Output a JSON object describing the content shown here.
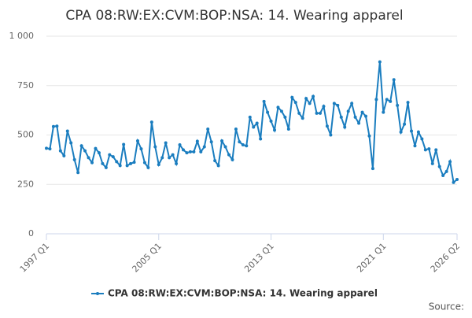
{
  "chart_data": {
    "type": "line",
    "title": "CPA 08:RW:EX:CVM:BOP:NSA: 14. Wearing apparel",
    "source": "Source:",
    "categories": [
      "1997 Q1",
      null,
      null,
      null,
      null,
      null,
      null,
      null,
      null,
      null,
      null,
      null,
      null,
      null,
      null,
      null,
      null,
      null,
      null,
      null,
      null,
      null,
      null,
      null,
      null,
      null,
      null,
      null,
      null,
      null,
      null,
      null,
      "2005 Q1",
      null,
      null,
      null,
      null,
      null,
      null,
      null,
      null,
      null,
      null,
      null,
      null,
      null,
      null,
      null,
      null,
      null,
      null,
      null,
      null,
      null,
      null,
      null,
      null,
      null,
      null,
      null,
      null,
      null,
      null,
      null,
      "2013 Q1",
      null,
      null,
      null,
      null,
      null,
      null,
      null,
      null,
      null,
      null,
      null,
      null,
      null,
      null,
      null,
      null,
      null,
      null,
      null,
      null,
      null,
      null,
      null,
      null,
      null,
      null,
      null,
      null,
      null,
      null,
      null,
      "2021 Q1",
      null,
      null,
      null,
      null,
      null,
      null,
      null,
      null,
      null,
      null,
      null,
      null,
      null,
      null,
      null,
      null,
      null,
      null,
      null,
      null,
      "2026 Q2"
    ],
    "series": [
      {
        "name": "CPA 08:RW:EX:CVM:BOP:NSA: 14. Wearing apparel",
        "color": "#1a7dbf",
        "values": [
          433,
          430,
          543,
          545,
          420,
          395,
          520,
          460,
          375,
          310,
          445,
          420,
          385,
          360,
          432,
          410,
          355,
          335,
          400,
          390,
          365,
          345,
          452,
          345,
          355,
          362,
          470,
          430,
          360,
          335,
          565,
          440,
          350,
          385,
          460,
          385,
          400,
          355,
          450,
          425,
          410,
          415,
          415,
          468,
          415,
          440,
          530,
          465,
          370,
          345,
          470,
          440,
          400,
          375,
          530,
          465,
          450,
          445,
          590,
          540,
          560,
          480,
          670,
          615,
          570,
          525,
          640,
          620,
          590,
          530,
          690,
          665,
          610,
          585,
          685,
          660,
          695,
          610,
          610,
          645,
          545,
          500,
          660,
          650,
          590,
          540,
          620,
          660,
          590,
          560,
          615,
          595,
          495,
          330,
          680,
          870,
          615,
          680,
          670,
          780,
          650,
          515,
          555,
          665,
          520,
          445,
          515,
          480,
          425,
          430,
          355,
          425,
          340,
          295,
          315,
          365,
          260,
          275
        ]
      }
    ],
    "ylim": [
      0,
      1000
    ],
    "yticks": [
      0,
      250,
      500,
      750,
      {
        "value": 1000,
        "label": "1 000"
      }
    ],
    "grid": true,
    "legend": "bottom"
  }
}
